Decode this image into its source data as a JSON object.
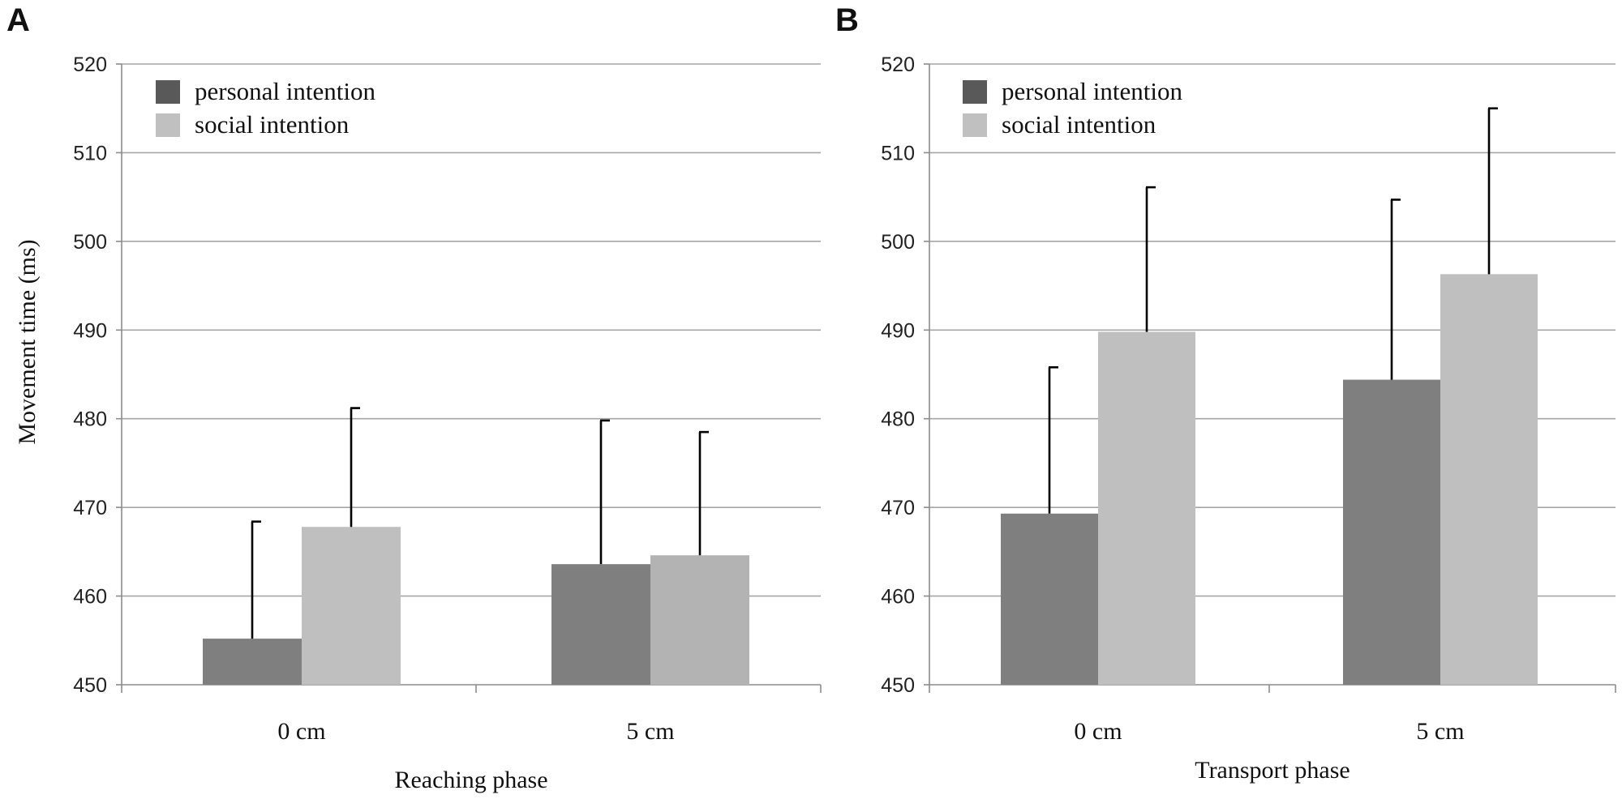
{
  "chart_data": [
    {
      "type": "bar",
      "panel": "A",
      "categories": [
        "0 cm",
        "5 cm"
      ],
      "series": [
        {
          "name": "personal intention",
          "values": [
            455.2,
            463.6
          ],
          "errors": [
            13.2,
            16.2
          ],
          "color": "#7f7f7f"
        },
        {
          "name": "social intention",
          "values": [
            467.8,
            464.6
          ],
          "errors": [
            13.4,
            13.9
          ],
          "color": "#bfbfbf",
          "colors": [
            "#bfbfbf",
            "#b3b3b3"
          ]
        }
      ],
      "xlabel": "Reaching phase",
      "ylabel": "Movement time (ms)",
      "ylim": [
        450,
        520
      ],
      "yticks": [
        450,
        460,
        470,
        480,
        490,
        500,
        510,
        520
      ],
      "grid": true,
      "legend_position": "top-left",
      "legend_colors": [
        "#595959",
        "#c0c0c0"
      ]
    },
    {
      "type": "bar",
      "panel": "B",
      "categories": [
        "0 cm",
        "5 cm"
      ],
      "series": [
        {
          "name": "personal intention",
          "values": [
            469.3,
            484.4
          ],
          "errors": [
            16.5,
            20.3
          ],
          "color": "#7f7f7f"
        },
        {
          "name": "social intention",
          "values": [
            489.8,
            496.3
          ],
          "errors": [
            16.3,
            18.7
          ],
          "color": "#bfbfbf",
          "colors": [
            "#bfbfbf",
            "#bfbfbf"
          ]
        }
      ],
      "xlabel": "Transport phase",
      "ylabel": "",
      "ylim": [
        450,
        520
      ],
      "yticks": [
        450,
        460,
        470,
        480,
        490,
        500,
        510,
        520
      ],
      "grid": true,
      "legend_position": "top-left",
      "legend_colors": [
        "#595959",
        "#c0c0c0"
      ]
    }
  ]
}
